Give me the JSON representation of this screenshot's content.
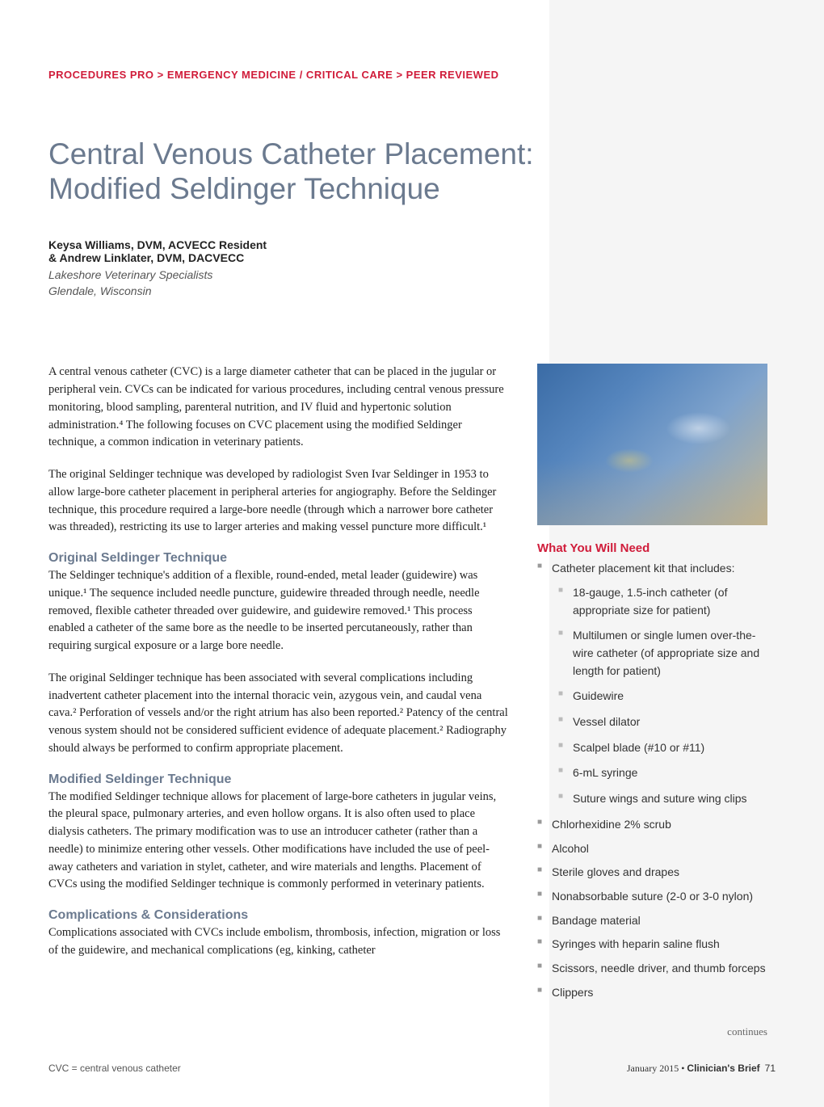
{
  "breadcrumb": {
    "level1": "PROCEDURES PRO",
    "arrow1": ">",
    "level2": "EMERGENCY MEDICINE / CRITICAL CARE",
    "arrow2": ">",
    "level3": "PEER REVIEWED"
  },
  "title": {
    "line1": "Central Venous Catheter Placement:",
    "line2": "Modified Seldinger Technique"
  },
  "authors": {
    "line1": "Keysa Williams, DVM, ACVECC Resident",
    "line2": "& Andrew Linklater, DVM, DACVECC"
  },
  "affiliation": {
    "line1": "Lakeshore Veterinary Specialists",
    "line2": "Glendale, Wisconsin"
  },
  "body": {
    "p1": "A central venous catheter (CVC) is a large diameter catheter that can be placed in the jugular or peripheral vein. CVCs can be indicated for various procedures, including central venous pressure monitoring, blood sampling, parenteral nutrition, and IV fluid and hypertonic solution administration.⁴ The following focuses on CVC placement using the modified Seldinger technique, a common indication in veterinary patients.",
    "p2": "The original Seldinger technique was developed by radiologist Sven Ivar Seldinger in 1953 to allow large-bore catheter placement in peripheral arteries for angiography. Before the Seldinger technique, this procedure required a large-bore needle (through which a narrower bore catheter was threaded), restricting its use to larger arteries and making vessel puncture more difficult.¹",
    "h1": "Original Seldinger Technique",
    "p3": "The Seldinger technique's addition of a flexible, round-ended, metal leader (guidewire) was unique.¹ The sequence included needle puncture, guidewire threaded through needle, needle removed, flexible catheter threaded over guidewire, and guidewire removed.¹ This process enabled a catheter of the same bore as the needle to be inserted percutaneously, rather than requiring surgical exposure or a large bore needle.",
    "p4": "The original Seldinger technique has been associated with several complications including inadvertent catheter placement into the internal thoracic vein, azygous vein, and caudal vena cava.² Perforation of vessels and/or the right atrium has also been reported.² Patency of the central venous system should not be considered sufficient evidence of adequate placement.² Radiography should always be performed to confirm appropriate placement.",
    "h2": "Modified Seldinger Technique",
    "p5": "The modified Seldinger technique allows for placement of large-bore catheters in jugular veins, the pleural space, pulmonary arteries, and even hollow organs. It is also often used to place dialysis catheters. The primary modification was to use an introducer catheter (rather than a needle) to minimize entering other vessels. Other modifications have included the use of peel-away catheters and variation in stylet, catheter, and wire materials and lengths. Placement of CVCs using the modified Seldinger technique is commonly performed in veterinary patients.",
    "h3": "Complications & Considerations",
    "p6": "Complications associated with CVCs include embolism, thrombosis, infection, migration or loss of the guidewire, and mechanical complications (eg, kinking, catheter"
  },
  "sidebar": {
    "heading": "What You Will Need",
    "items": [
      "Catheter placement kit that includes:",
      "Chlorhexidine 2% scrub",
      "Alcohol",
      "Sterile gloves and drapes",
      "Nonabsorbable suture (2-0 or 3-0 nylon)",
      "Bandage material",
      "Syringes with heparin saline flush",
      "Scissors, needle driver, and thumb forceps",
      "Clippers"
    ],
    "subitems": [
      "18-gauge, 1.5-inch catheter (of appropriate size for patient)",
      "Multilumen or single lumen over-the-wire catheter (of appropriate size and length for patient)",
      "Guidewire",
      "Vessel dilator",
      "Scalpel blade (#10 or #11)",
      "6-mL syringe",
      "Suture wings and suture wing clips"
    ]
  },
  "continues": "continues",
  "footer": {
    "left": "CVC = central venous catheter",
    "month": "January 2015",
    "dot": "•",
    "publication": "Clinician's Brief",
    "page": "71"
  },
  "colors": {
    "accent_red": "#d01c3a",
    "slate_blue": "#6b7a8f",
    "sidebar_bg": "#f5f5f5",
    "bullet_gray": "#999999",
    "text": "#222222"
  }
}
